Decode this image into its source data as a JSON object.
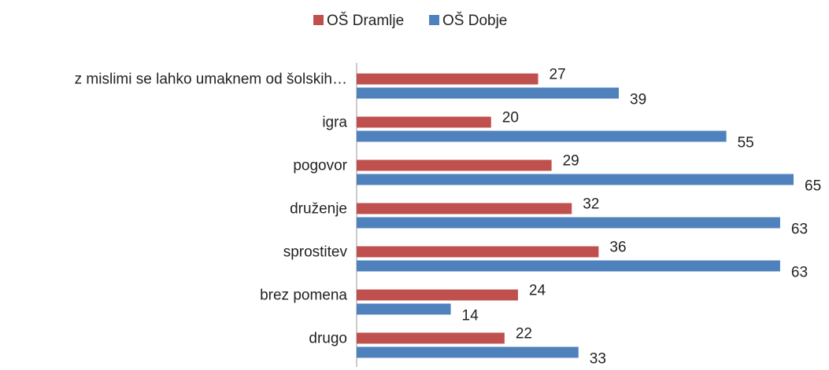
{
  "chart_data": {
    "type": "bar",
    "orientation": "horizontal",
    "categories": [
      "z mislimi se lahko umaknem od šolskih…",
      "igra",
      "pogovor",
      "druženje",
      "sprostitev",
      "brez pomena",
      "drugo"
    ],
    "series": [
      {
        "name": "OŠ Dramlje",
        "color": "#c0504d",
        "values": [
          27,
          20,
          29,
          32,
          36,
          24,
          22
        ]
      },
      {
        "name": "OŠ Dobje",
        "color": "#4f81bd",
        "values": [
          39,
          55,
          65,
          63,
          63,
          14,
          33
        ]
      }
    ],
    "xlim": [
      0,
      65
    ],
    "legend": "top"
  }
}
